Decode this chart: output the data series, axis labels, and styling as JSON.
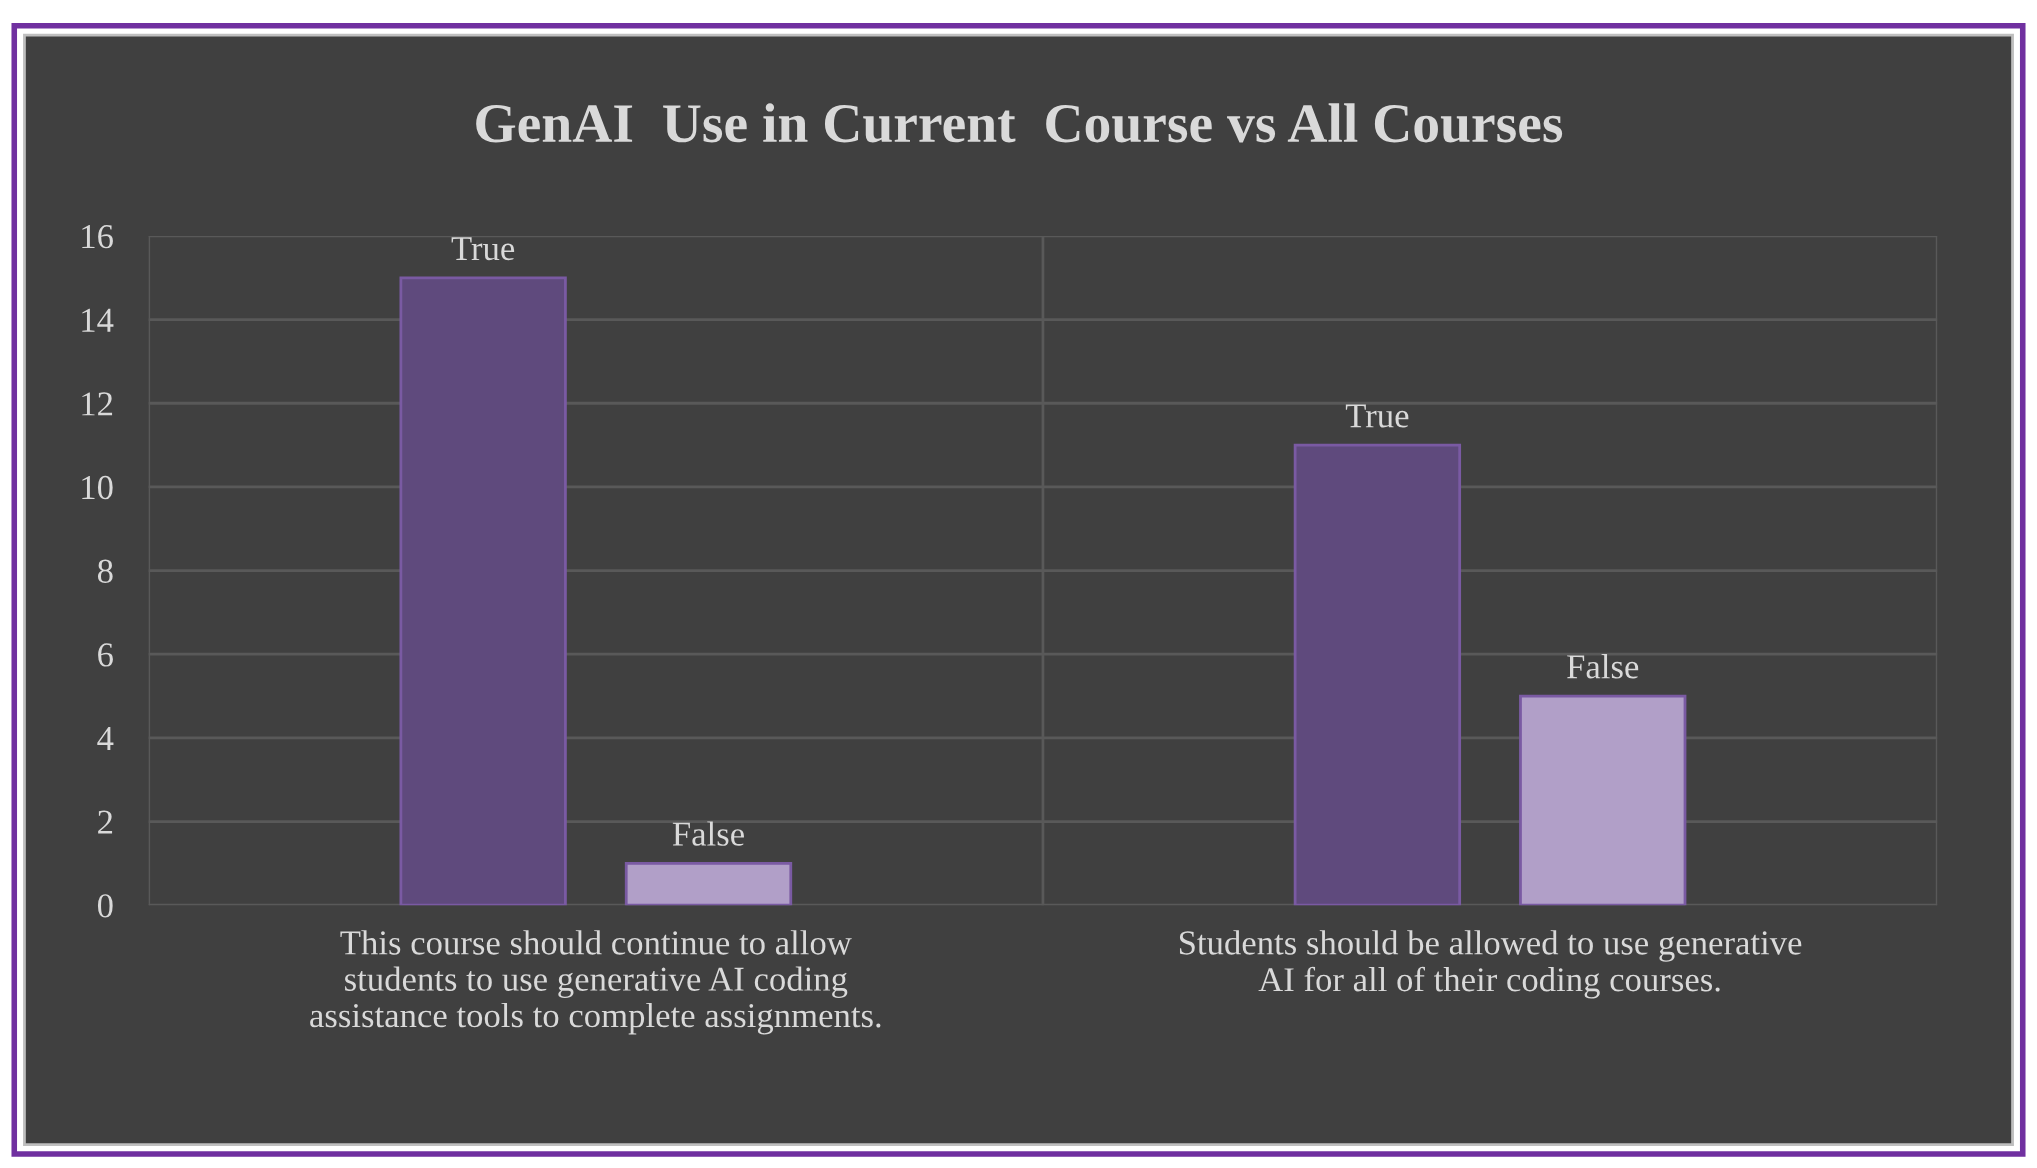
{
  "chart_data": {
    "type": "bar",
    "title": "GenAI  Use in Current  Course vs All Courses",
    "categories": [
      "This course should continue to allow\nstudents to use generative AI coding\nassistance tools to complete assignments.",
      "Students should be allowed to use generative\nAI for all of their coding courses."
    ],
    "series": [
      {
        "name": "True",
        "color": "#5f4a7d",
        "values": [
          15,
          11
        ]
      },
      {
        "name": "False",
        "color": "#b19fc8",
        "values": [
          1,
          5
        ]
      }
    ],
    "ylim": [
      0,
      16
    ],
    "yticks": [
      0,
      2,
      4,
      6,
      8,
      10,
      12,
      14,
      16
    ],
    "grid": true,
    "legend": false
  }
}
